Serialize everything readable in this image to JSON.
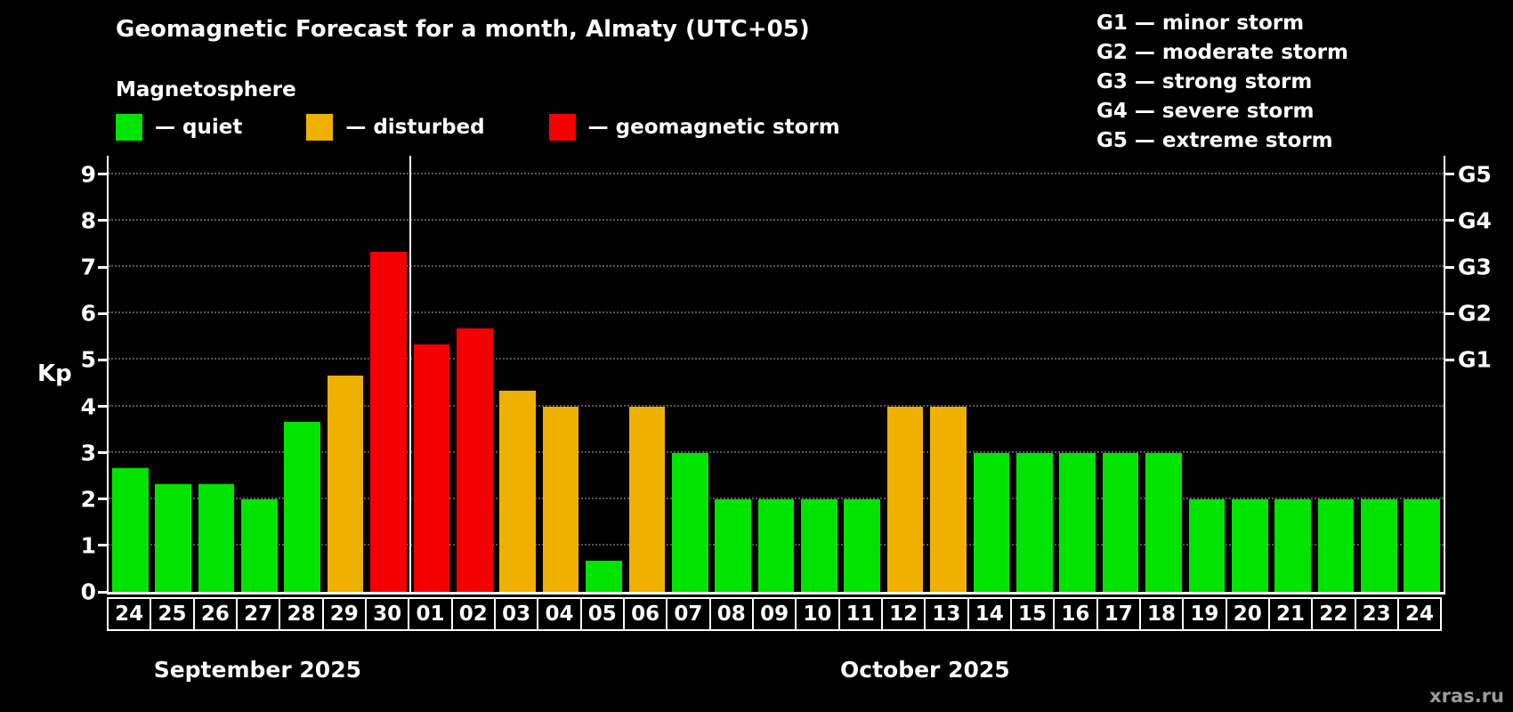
{
  "title": "Geomagnetic Forecast for a month, Almaty (UTC+05)",
  "legend": {
    "heading": "Magnetosphere",
    "items": [
      {
        "status": "quiet",
        "label": "— quiet"
      },
      {
        "status": "disturbed",
        "label": "— disturbed"
      },
      {
        "status": "storm",
        "label": "— geomagnetic storm"
      }
    ]
  },
  "storm_scale": [
    "G1 — minor storm",
    "G2 — moderate storm",
    "G3 — strong storm",
    "G4 — severe storm",
    "G5 — extreme storm"
  ],
  "watermark": "xras.ru",
  "chart_data": {
    "type": "bar",
    "ylabel": "Kp",
    "ylim": [
      0,
      9.4
    ],
    "yticks": [
      0,
      1,
      2,
      3,
      4,
      5,
      6,
      7,
      8,
      9
    ],
    "grid": "dotted horizontal lines at each Kp integer",
    "legend_position": "top-left",
    "right_scale": [
      {
        "label": "G1",
        "value": 5
      },
      {
        "label": "G2",
        "value": 6
      },
      {
        "label": "G3",
        "value": 7
      },
      {
        "label": "G4",
        "value": 8
      },
      {
        "label": "G5",
        "value": 9
      }
    ],
    "colors": {
      "quiet": "#00e400",
      "disturbed": "#f0b000",
      "storm": "#f40000"
    },
    "months": [
      {
        "label": "September 2025",
        "count": 7
      },
      {
        "label": "October 2025",
        "count": 24
      }
    ],
    "bars": [
      {
        "day": "24",
        "value": 2.67,
        "status": "quiet"
      },
      {
        "day": "25",
        "value": 2.33,
        "status": "quiet"
      },
      {
        "day": "26",
        "value": 2.33,
        "status": "quiet"
      },
      {
        "day": "27",
        "value": 2.0,
        "status": "quiet"
      },
      {
        "day": "28",
        "value": 3.67,
        "status": "quiet"
      },
      {
        "day": "29",
        "value": 4.67,
        "status": "disturbed"
      },
      {
        "day": "30",
        "value": 7.33,
        "status": "storm"
      },
      {
        "day": "01",
        "value": 5.33,
        "status": "storm"
      },
      {
        "day": "02",
        "value": 5.67,
        "status": "storm"
      },
      {
        "day": "03",
        "value": 4.33,
        "status": "disturbed"
      },
      {
        "day": "04",
        "value": 4.0,
        "status": "disturbed"
      },
      {
        "day": "05",
        "value": 0.67,
        "status": "quiet"
      },
      {
        "day": "06",
        "value": 4.0,
        "status": "disturbed"
      },
      {
        "day": "07",
        "value": 3.0,
        "status": "quiet"
      },
      {
        "day": "08",
        "value": 2.0,
        "status": "quiet"
      },
      {
        "day": "09",
        "value": 2.0,
        "status": "quiet"
      },
      {
        "day": "10",
        "value": 2.0,
        "status": "quiet"
      },
      {
        "day": "11",
        "value": 2.0,
        "status": "quiet"
      },
      {
        "day": "12",
        "value": 4.0,
        "status": "disturbed"
      },
      {
        "day": "13",
        "value": 4.0,
        "status": "disturbed"
      },
      {
        "day": "14",
        "value": 3.0,
        "status": "quiet"
      },
      {
        "day": "15",
        "value": 3.0,
        "status": "quiet"
      },
      {
        "day": "16",
        "value": 3.0,
        "status": "quiet"
      },
      {
        "day": "17",
        "value": 3.0,
        "status": "quiet"
      },
      {
        "day": "18",
        "value": 3.0,
        "status": "quiet"
      },
      {
        "day": "19",
        "value": 2.0,
        "status": "quiet"
      },
      {
        "day": "20",
        "value": 2.0,
        "status": "quiet"
      },
      {
        "day": "21",
        "value": 2.0,
        "status": "quiet"
      },
      {
        "day": "22",
        "value": 2.0,
        "status": "quiet"
      },
      {
        "day": "23",
        "value": 2.0,
        "status": "quiet"
      },
      {
        "day": "24",
        "value": 2.0,
        "status": "quiet"
      }
    ]
  }
}
